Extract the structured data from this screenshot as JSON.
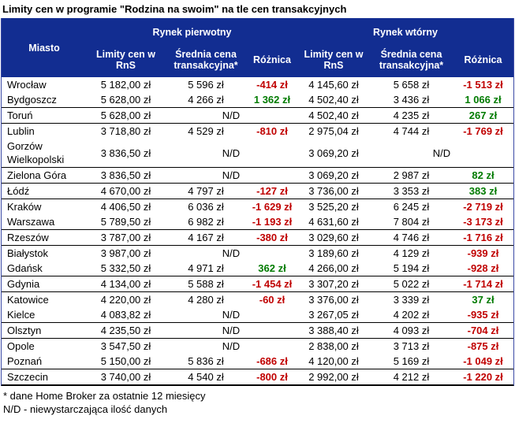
{
  "title": "Limity cen w programie \"Rodzina na swoim\" na tle cen transakcyjnych",
  "colors": {
    "header_bg": "#122D91",
    "header_text": "#FFFFFF",
    "negative_diff": "#C00000",
    "positive_diff": "#007B00",
    "group_separator": "#000000"
  },
  "nd_label": "N/D",
  "chart_data": {
    "type": "table",
    "title": "Limity cen w programie \"Rodzina na swoim\" na tle cen transakcyjnych",
    "header": {
      "miasto": "Miasto",
      "primary_group": "Rynek pierwotny",
      "secondary_group": "Rynek wtórny",
      "limit": "Limity cen w RnS",
      "avg": "Średnia cena transakcyjna*",
      "diff": "Różnica"
    },
    "rows": [
      {
        "city": "Wrocław",
        "p_limit": "5 182,00 zł",
        "p_avg": "5 596 zł",
        "p_diff": "-414 zł",
        "s_limit": "4 145,60 zł",
        "s_avg": "5 658 zł",
        "s_diff": "-1 513 zł",
        "group_end": false
      },
      {
        "city": "Bydgoszcz",
        "p_limit": "5 628,00 zł",
        "p_avg": "4 266 zł",
        "p_diff": "1 362 zł",
        "s_limit": "4 502,40 zł",
        "s_avg": "3 436 zł",
        "s_diff": "1 066 zł",
        "group_end": true
      },
      {
        "city": "Toruń",
        "p_limit": "5 628,00 zł",
        "p_nd": true,
        "s_limit": "4 502,40 zł",
        "s_avg": "4 235 zł",
        "s_diff": "267 zł",
        "group_end": true
      },
      {
        "city": "Lublin",
        "p_limit": "3 718,80 zł",
        "p_avg": "4 529 zł",
        "p_diff": "-810 zł",
        "s_limit": "2 975,04 zł",
        "s_avg": "4 744 zł",
        "s_diff": "-1 769 zł",
        "group_end": false
      },
      {
        "city": "Gorzów Wielkopolski",
        "p_limit": "3 836,50 zł",
        "p_nd": true,
        "s_limit": "3 069,20 zł",
        "s_nd": true,
        "group_end": true
      },
      {
        "city": "Zielona Góra",
        "p_limit": "3 836,50 zł",
        "p_nd": true,
        "s_limit": "3 069,20 zł",
        "s_avg": "2 987 zł",
        "s_diff": "82 zł",
        "group_end": true
      },
      {
        "city": "Łódź",
        "p_limit": "4 670,00 zł",
        "p_avg": "4 797 zł",
        "p_diff": "-127 zł",
        "s_limit": "3 736,00 zł",
        "s_avg": "3 353 zł",
        "s_diff": "383 zł",
        "group_end": true
      },
      {
        "city": "Kraków",
        "p_limit": "4 406,50 zł",
        "p_avg": "6 036 zł",
        "p_diff": "-1 629 zł",
        "s_limit": "3 525,20 zł",
        "s_avg": "6 245 zł",
        "s_diff": "-2 719 zł",
        "group_end": false
      },
      {
        "city": "Warszawa",
        "p_limit": "5 789,50 zł",
        "p_avg": "6 982 zł",
        "p_diff": "-1 193 zł",
        "s_limit": "4 631,60 zł",
        "s_avg": "7 804 zł",
        "s_diff": "-3 173 zł",
        "group_end": true
      },
      {
        "city": "Rzeszów",
        "p_limit": "3 787,00 zł",
        "p_avg": "4 167 zł",
        "p_diff": "-380 zł",
        "s_limit": "3 029,60 zł",
        "s_avg": "4 746 zł",
        "s_diff": "-1 716 zł",
        "group_end": true
      },
      {
        "city": "Białystok",
        "p_limit": "3 987,00 zł",
        "p_nd": true,
        "s_limit": "3 189,60 zł",
        "s_avg": "4 129 zł",
        "s_diff": "-939 zł",
        "group_end": false
      },
      {
        "city": "Gdańsk",
        "p_limit": "5 332,50 zł",
        "p_avg": "4 971 zł",
        "p_diff": "362 zł",
        "s_limit": "4 266,00 zł",
        "s_avg": "5 194 zł",
        "s_diff": "-928 zł",
        "group_end": true
      },
      {
        "city": "Gdynia",
        "p_limit": "4 134,00 zł",
        "p_avg": "5 588 zł",
        "p_diff": "-1 454 zł",
        "s_limit": "3 307,20 zł",
        "s_avg": "5 022 zł",
        "s_diff": "-1 714 zł",
        "group_end": true
      },
      {
        "city": "Katowice",
        "p_limit": "4 220,00 zł",
        "p_avg": "4 280 zł",
        "p_diff": "-60 zł",
        "s_limit": "3 376,00 zł",
        "s_avg": "3 339 zł",
        "s_diff": "37 zł",
        "group_end": false
      },
      {
        "city": "Kielce",
        "p_limit": "4 083,82 zł",
        "p_nd": true,
        "s_limit": "3 267,05 zł",
        "s_avg": "4 202 zł",
        "s_diff": "-935 zł",
        "group_end": true
      },
      {
        "city": "Olsztyn",
        "p_limit": "4 235,50 zł",
        "p_nd": true,
        "s_limit": "3 388,40 zł",
        "s_avg": "4 093 zł",
        "s_diff": "-704 zł",
        "group_end": true
      },
      {
        "city": "Opole",
        "p_limit": "3 547,50 zł",
        "p_nd": true,
        "s_limit": "2 838,00 zł",
        "s_avg": "3 713 zł",
        "s_diff": "-875 zł",
        "group_end": false
      },
      {
        "city": "Poznań",
        "p_limit": "5 150,00 zł",
        "p_avg": "5 836 zł",
        "p_diff": "-686 zł",
        "s_limit": "4 120,00 zł",
        "s_avg": "5 169 zł",
        "s_diff": "-1 049 zł",
        "group_end": true
      },
      {
        "city": "Szczecin",
        "p_limit": "3 740,00 zł",
        "p_avg": "4 540 zł",
        "p_diff": "-800 zł",
        "s_limit": "2 992,00 zł",
        "s_avg": "4 212 zł",
        "s_diff": "-1 220 zł",
        "group_end": true
      }
    ]
  },
  "footnotes": [
    "* dane Home Broker za ostatnie 12 miesięcy",
    "N/D - niewystarczająca ilość danych"
  ]
}
